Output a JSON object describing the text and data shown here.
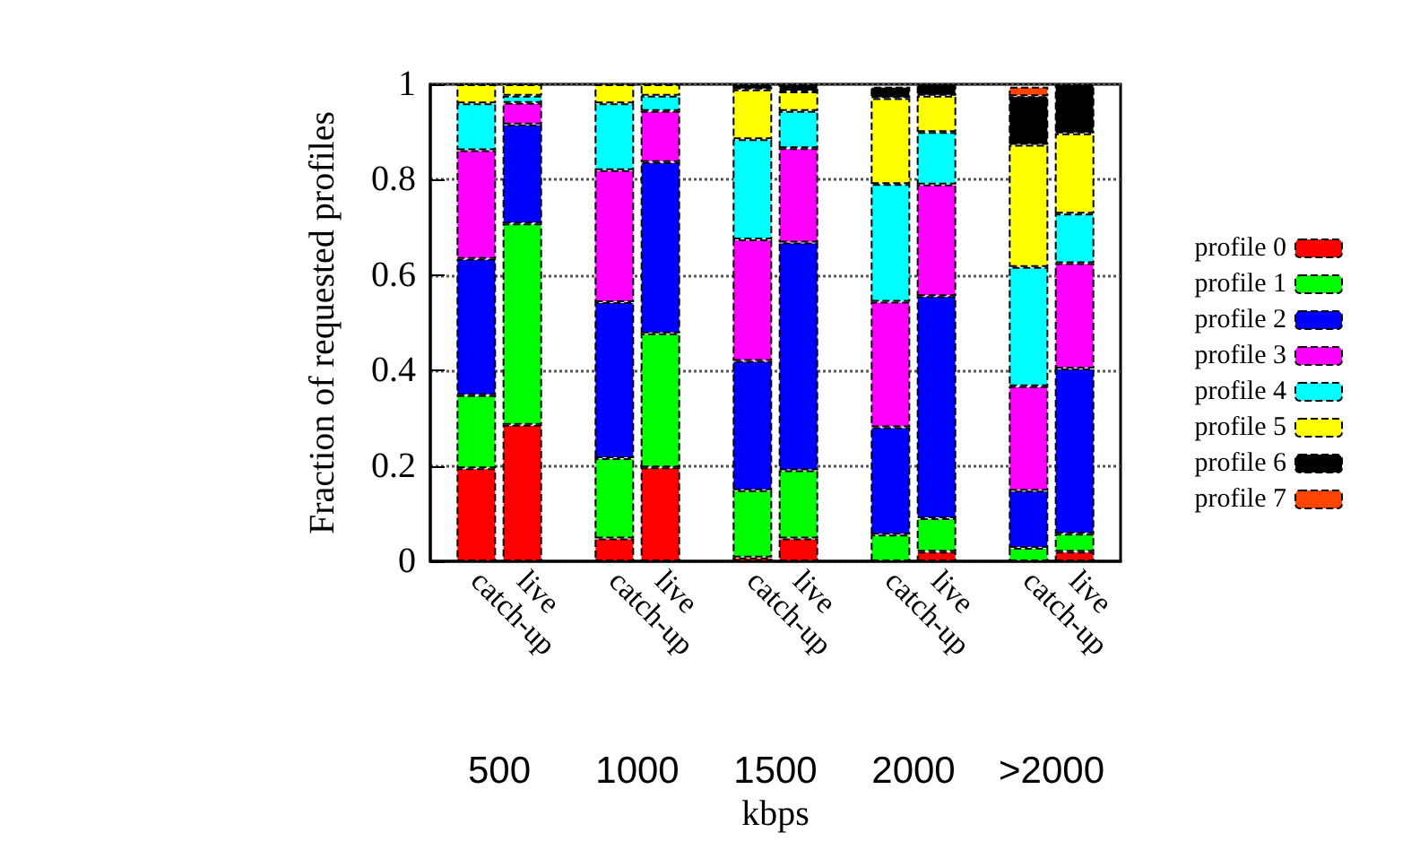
{
  "chart_data": {
    "type": "bar",
    "stacked": true,
    "ylabel": "Fraction of requested profiles",
    "xlabel": "kbps",
    "categories": [
      null,
      "catch-up",
      "live",
      null,
      "catch-up",
      "live",
      null,
      "catch-up",
      "live",
      null,
      "catch-up",
      "live",
      null,
      "catch-up",
      "live",
      null
    ],
    "annotations": [
      "500",
      "1000",
      "1500",
      "2000",
      ">2000"
    ],
    "ylim": [
      0,
      1
    ],
    "yticks": [
      0,
      0.2,
      0.4,
      0.6,
      0.8,
      1
    ],
    "grid": "y",
    "legend": "right",
    "series": [
      {
        "name": "profile 0",
        "color": "#ff0000",
        "values": [
          null,
          0.195,
          0.286,
          null,
          0.048,
          0.197,
          null,
          0.008,
          0.048,
          null,
          null,
          0.02,
          null,
          null,
          0.02,
          null
        ]
      },
      {
        "name": "profile 1",
        "color": "#00ff00",
        "values": [
          null,
          0.153,
          0.422,
          null,
          0.168,
          0.281,
          null,
          0.141,
          0.143,
          null,
          0.056,
          0.07,
          null,
          0.028,
          0.038,
          null
        ]
      },
      {
        "name": "profile 2",
        "color": "#0000ff",
        "values": [
          null,
          0.286,
          0.208,
          null,
          0.327,
          0.359,
          null,
          0.271,
          0.477,
          null,
          0.225,
          0.466,
          null,
          0.12,
          0.346,
          null
        ]
      },
      {
        "name": "profile 3",
        "color": "#ff00ff",
        "values": [
          null,
          0.228,
          0.045,
          null,
          0.277,
          0.107,
          null,
          0.255,
          0.198,
          null,
          0.263,
          0.234,
          null,
          0.219,
          0.221,
          null
        ]
      },
      {
        "name": "profile 4",
        "color": "#00ffff",
        "values": [
          null,
          0.098,
          0.015,
          null,
          0.14,
          0.032,
          null,
          0.21,
          0.078,
          null,
          0.247,
          0.11,
          null,
          0.25,
          0.104,
          null
        ]
      },
      {
        "name": "profile 5",
        "color": "#ffff00",
        "values": [
          null,
          0.04,
          0.024,
          null,
          0.04,
          0.024,
          null,
          0.104,
          0.041,
          null,
          0.18,
          0.076,
          null,
          0.256,
          0.168,
          null
        ]
      },
      {
        "name": "profile 6",
        "color": "#000000",
        "values": [
          null,
          0,
          0,
          null,
          0,
          0,
          null,
          0.011,
          0.015,
          null,
          0.024,
          0.024,
          null,
          0.102,
          0.103,
          null
        ]
      },
      {
        "name": "profile 7",
        "color": "#ff4500",
        "values": [
          null,
          0,
          0,
          null,
          0,
          0,
          null,
          0,
          0,
          null,
          0,
          0,
          null,
          0.02,
          0,
          null
        ]
      }
    ]
  }
}
